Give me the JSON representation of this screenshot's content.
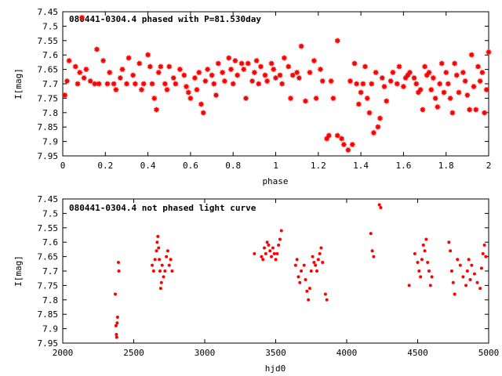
{
  "chart_data": [
    {
      "type": "scatter",
      "title": "080441-0304.4 phased with P=81.530day",
      "xlabel": "phase",
      "ylabel": "I[mag]",
      "xlim": [
        0,
        2
      ],
      "ylim": [
        7.45,
        7.95
      ],
      "y_inverted": true,
      "grid": false,
      "marker": "star",
      "color": "#ff0000",
      "x_ticks": [
        "0",
        "0.2",
        "0.4",
        "0.6",
        "0.8",
        "1",
        "1.2",
        "1.4",
        "1.6",
        "1.8",
        "2"
      ],
      "y_ticks": [
        "7.45",
        "7.5",
        "7.55",
        "7.6",
        "7.65",
        "7.7",
        "7.75",
        "7.8",
        "7.85",
        "7.9",
        "7.95"
      ],
      "series": [
        {
          "points": [
            [
              0.01,
              7.74
            ],
            [
              0.02,
              7.69
            ],
            [
              0.03,
              7.62
            ],
            [
              0.06,
              7.64
            ],
            [
              0.07,
              7.7
            ],
            [
              0.08,
              7.66
            ],
            [
              0.09,
              7.47
            ],
            [
              0.1,
              7.68
            ],
            [
              0.11,
              7.65
            ],
            [
              0.13,
              7.69
            ],
            [
              0.15,
              7.7
            ],
            [
              0.16,
              7.58
            ],
            [
              0.17,
              7.7
            ],
            [
              0.19,
              7.62
            ],
            [
              0.21,
              7.7
            ],
            [
              0.22,
              7.66
            ],
            [
              0.24,
              7.7
            ],
            [
              0.25,
              7.72
            ],
            [
              0.27,
              7.68
            ],
            [
              0.28,
              7.65
            ],
            [
              0.3,
              7.7
            ],
            [
              0.31,
              7.61
            ],
            [
              0.33,
              7.67
            ],
            [
              0.34,
              7.7
            ],
            [
              0.36,
              7.63
            ],
            [
              0.37,
              7.72
            ],
            [
              0.38,
              7.7
            ],
            [
              0.4,
              7.6
            ],
            [
              0.41,
              7.64
            ],
            [
              0.42,
              7.7
            ],
            [
              0.43,
              7.75
            ],
            [
              0.44,
              7.79
            ],
            [
              0.45,
              7.66
            ],
            [
              0.46,
              7.64
            ],
            [
              0.48,
              7.7
            ],
            [
              0.49,
              7.72
            ],
            [
              0.5,
              7.64
            ],
            [
              0.52,
              7.68
            ],
            [
              0.53,
              7.7
            ],
            [
              0.55,
              7.65
            ],
            [
              0.57,
              7.67
            ],
            [
              0.58,
              7.71
            ],
            [
              0.59,
              7.73
            ],
            [
              0.6,
              7.75
            ],
            [
              0.62,
              7.68
            ],
            [
              0.63,
              7.72
            ],
            [
              0.64,
              7.66
            ],
            [
              0.65,
              7.77
            ],
            [
              0.66,
              7.8
            ],
            [
              0.67,
              7.69
            ],
            [
              0.68,
              7.65
            ],
            [
              0.7,
              7.67
            ],
            [
              0.71,
              7.7
            ],
            [
              0.72,
              7.74
            ],
            [
              0.73,
              7.63
            ],
            [
              0.75,
              7.66
            ],
            [
              0.76,
              7.69
            ],
            [
              0.78,
              7.61
            ],
            [
              0.79,
              7.65
            ],
            [
              0.8,
              7.7
            ],
            [
              0.81,
              7.62
            ],
            [
              0.82,
              7.67
            ],
            [
              0.84,
              7.63
            ],
            [
              0.85,
              7.65
            ],
            [
              0.86,
              7.75
            ],
            [
              0.87,
              7.63
            ],
            [
              0.89,
              7.69
            ],
            [
              0.9,
              7.66
            ],
            [
              0.91,
              7.62
            ],
            [
              0.92,
              7.7
            ],
            [
              0.93,
              7.64
            ],
            [
              0.95,
              7.67
            ],
            [
              0.96,
              7.69
            ],
            [
              0.98,
              7.63
            ],
            [
              0.99,
              7.65
            ],
            [
              1.0,
              7.68
            ],
            [
              1.02,
              7.67
            ],
            [
              1.03,
              7.7
            ],
            [
              1.04,
              7.61
            ],
            [
              1.06,
              7.64
            ],
            [
              1.07,
              7.75
            ],
            [
              1.08,
              7.67
            ],
            [
              1.1,
              7.66
            ],
            [
              1.11,
              7.68
            ],
            [
              1.12,
              7.57
            ],
            [
              1.14,
              7.76
            ],
            [
              1.16,
              7.66
            ],
            [
              1.18,
              7.62
            ],
            [
              1.19,
              7.75
            ],
            [
              1.21,
              7.65
            ],
            [
              1.22,
              7.69
            ],
            [
              1.24,
              7.89
            ],
            [
              1.25,
              7.88
            ],
            [
              1.26,
              7.69
            ],
            [
              1.27,
              7.75
            ],
            [
              1.29,
              7.55
            ],
            [
              1.29,
              7.88
            ],
            [
              1.31,
              7.89
            ],
            [
              1.32,
              7.91
            ],
            [
              1.34,
              7.93
            ],
            [
              1.35,
              7.69
            ],
            [
              1.36,
              7.91
            ],
            [
              1.37,
              7.63
            ],
            [
              1.38,
              7.7
            ],
            [
              1.39,
              7.77
            ],
            [
              1.4,
              7.73
            ],
            [
              1.41,
              7.7
            ],
            [
              1.42,
              7.64
            ],
            [
              1.43,
              7.75
            ],
            [
              1.44,
              7.8
            ],
            [
              1.45,
              7.7
            ],
            [
              1.46,
              7.87
            ],
            [
              1.47,
              7.66
            ],
            [
              1.48,
              7.85
            ],
            [
              1.49,
              7.82
            ],
            [
              1.5,
              7.68
            ],
            [
              1.51,
              7.71
            ],
            [
              1.52,
              7.76
            ],
            [
              1.54,
              7.69
            ],
            [
              1.55,
              7.66
            ],
            [
              1.57,
              7.7
            ],
            [
              1.58,
              7.64
            ],
            [
              1.6,
              7.71
            ],
            [
              1.61,
              7.68
            ],
            [
              1.62,
              7.67
            ],
            [
              1.63,
              7.66
            ],
            [
              1.65,
              7.68
            ],
            [
              1.66,
              7.7
            ],
            [
              1.67,
              7.73
            ],
            [
              1.68,
              7.72
            ],
            [
              1.69,
              7.79
            ],
            [
              1.7,
              7.64
            ],
            [
              1.71,
              7.67
            ],
            [
              1.72,
              7.66
            ],
            [
              1.73,
              7.72
            ],
            [
              1.74,
              7.68
            ],
            [
              1.75,
              7.75
            ],
            [
              1.76,
              7.78
            ],
            [
              1.77,
              7.7
            ],
            [
              1.78,
              7.63
            ],
            [
              1.79,
              7.73
            ],
            [
              1.8,
              7.66
            ],
            [
              1.81,
              7.7
            ],
            [
              1.82,
              7.75
            ],
            [
              1.83,
              7.8
            ],
            [
              1.84,
              7.63
            ],
            [
              1.85,
              7.67
            ],
            [
              1.86,
              7.73
            ],
            [
              1.88,
              7.66
            ],
            [
              1.89,
              7.69
            ],
            [
              1.9,
              7.74
            ],
            [
              1.91,
              7.79
            ],
            [
              1.92,
              7.6
            ],
            [
              1.93,
              7.71
            ],
            [
              1.94,
              7.79
            ],
            [
              1.95,
              7.64
            ],
            [
              1.96,
              7.69
            ],
            [
              1.97,
              7.66
            ],
            [
              1.98,
              7.8
            ],
            [
              1.99,
              7.72
            ],
            [
              2.0,
              7.59
            ]
          ]
        }
      ]
    },
    {
      "type": "scatter",
      "title": "080441-0304.4 not phased light curve",
      "xlabel": "hjd0",
      "ylabel": "I[mag]",
      "xlim": [
        2000,
        5000
      ],
      "ylim": [
        7.45,
        7.95
      ],
      "y_inverted": true,
      "grid": false,
      "marker": "dot",
      "color": "#ff0000",
      "x_ticks": [
        "2000",
        "2500",
        "3000",
        "3500",
        "4000",
        "4500",
        "5000"
      ],
      "y_ticks": [
        "7.45",
        "7.5",
        "7.55",
        "7.6",
        "7.65",
        "7.7",
        "7.75",
        "7.8",
        "7.85",
        "7.9",
        "7.95"
      ],
      "series": [
        {
          "points": [
            [
              2370,
              7.78
            ],
            [
              2375,
              7.89
            ],
            [
              2378,
              7.92
            ],
            [
              2380,
              7.93
            ],
            [
              2383,
              7.88
            ],
            [
              2386,
              7.86
            ],
            [
              2392,
              7.67
            ],
            [
              2395,
              7.7
            ],
            [
              2630,
              7.68
            ],
            [
              2640,
              7.7
            ],
            [
              2650,
              7.66
            ],
            [
              2660,
              7.63
            ],
            [
              2665,
              7.6
            ],
            [
              2670,
              7.58
            ],
            [
              2675,
              7.62
            ],
            [
              2680,
              7.66
            ],
            [
              2685,
              7.7
            ],
            [
              2690,
              7.76
            ],
            [
              2695,
              7.74
            ],
            [
              2700,
              7.68
            ],
            [
              2710,
              7.72
            ],
            [
              2720,
              7.7
            ],
            [
              2730,
              7.65
            ],
            [
              2740,
              7.63
            ],
            [
              2750,
              7.68
            ],
            [
              2760,
              7.66
            ],
            [
              2770,
              7.7
            ],
            [
              3350,
              7.64
            ],
            [
              3400,
              7.65
            ],
            [
              3410,
              7.66
            ],
            [
              3420,
              7.62
            ],
            [
              3430,
              7.64
            ],
            [
              3440,
              7.6
            ],
            [
              3450,
              7.61
            ],
            [
              3460,
              7.63
            ],
            [
              3470,
              7.65
            ],
            [
              3480,
              7.62
            ],
            [
              3490,
              7.64
            ],
            [
              3500,
              7.66
            ],
            [
              3510,
              7.64
            ],
            [
              3520,
              7.61
            ],
            [
              3530,
              7.59
            ],
            [
              3540,
              7.56
            ],
            [
              3640,
              7.68
            ],
            [
              3650,
              7.66
            ],
            [
              3660,
              7.72
            ],
            [
              3670,
              7.74
            ],
            [
              3680,
              7.7
            ],
            [
              3700,
              7.68
            ],
            [
              3710,
              7.73
            ],
            [
              3720,
              7.77
            ],
            [
              3730,
              7.8
            ],
            [
              3740,
              7.76
            ],
            [
              3750,
              7.7
            ],
            [
              3760,
              7.65
            ],
            [
              3770,
              7.67
            ],
            [
              3780,
              7.68
            ],
            [
              3790,
              7.7
            ],
            [
              3800,
              7.66
            ],
            [
              3810,
              7.64
            ],
            [
              3820,
              7.62
            ],
            [
              3830,
              7.67
            ],
            [
              3850,
              7.78
            ],
            [
              3860,
              7.8
            ],
            [
              4170,
              7.57
            ],
            [
              4180,
              7.63
            ],
            [
              4190,
              7.65
            ],
            [
              4230,
              7.47
            ],
            [
              4240,
              7.48
            ],
            [
              4440,
              7.75
            ],
            [
              4480,
              7.64
            ],
            [
              4500,
              7.67
            ],
            [
              4510,
              7.7
            ],
            [
              4520,
              7.72
            ],
            [
              4530,
              7.66
            ],
            [
              4540,
              7.61
            ],
            [
              4550,
              7.63
            ],
            [
              4560,
              7.59
            ],
            [
              4570,
              7.67
            ],
            [
              4580,
              7.7
            ],
            [
              4590,
              7.75
            ],
            [
              4600,
              7.72
            ],
            [
              4720,
              7.6
            ],
            [
              4730,
              7.63
            ],
            [
              4740,
              7.7
            ],
            [
              4750,
              7.74
            ],
            [
              4760,
              7.78
            ],
            [
              4780,
              7.66
            ],
            [
              4800,
              7.68
            ],
            [
              4820,
              7.72
            ],
            [
              4840,
              7.75
            ],
            [
              4850,
              7.7
            ],
            [
              4860,
              7.66
            ],
            [
              4870,
              7.73
            ],
            [
              4880,
              7.68
            ],
            [
              4900,
              7.71
            ],
            [
              4920,
              7.74
            ],
            [
              4940,
              7.76
            ],
            [
              4950,
              7.69
            ],
            [
              4960,
              7.64
            ],
            [
              4970,
              7.61
            ],
            [
              4980,
              7.65
            ]
          ]
        }
      ]
    }
  ]
}
